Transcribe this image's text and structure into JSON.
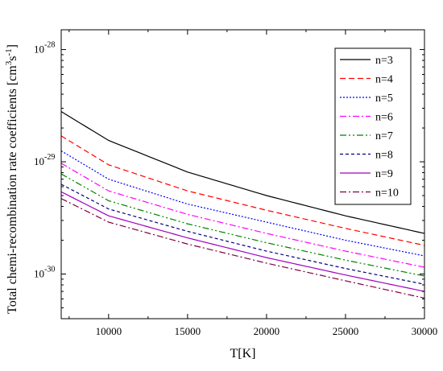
{
  "chart_data": {
    "type": "line",
    "title": "",
    "xlabel": "T[K]",
    "ylabel": "Total chemi-recombination rate coefficients [cm",
    "ylabel_unit_parts": [
      "3",
      "s",
      "-1",
      "]"
    ],
    "xscale": "linear",
    "yscale": "log",
    "xlim": [
      7000,
      30000
    ],
    "ylim": [
      4e-31,
      1.5e-28
    ],
    "grid": false,
    "legend_position": "top-right",
    "x_ticks": [
      {
        "value": 10000,
        "label": "10000"
      },
      {
        "value": 15000,
        "label": "15000"
      },
      {
        "value": 20000,
        "label": "20000"
      },
      {
        "value": 25000,
        "label": "25000"
      },
      {
        "value": 30000,
        "label": "30000"
      }
    ],
    "y_ticks": [
      {
        "value": 1e-28,
        "base": "10",
        "exp": "-28"
      },
      {
        "value": 1e-29,
        "base": "10",
        "exp": "-29"
      },
      {
        "value": 1e-30,
        "base": "10",
        "exp": "-30"
      }
    ],
    "x": [
      7000,
      10000,
      15000,
      20000,
      25000,
      30000
    ],
    "series": [
      {
        "name": "n=3",
        "color": "#000000",
        "dash": "solid",
        "values": [
          2.8e-29,
          1.55e-29,
          8.1e-30,
          5e-30,
          3.3e-30,
          2.3e-30
        ]
      },
      {
        "name": "n=4",
        "color": "#ff0000",
        "dash": "dashed",
        "values": [
          1.7e-29,
          9.4e-30,
          5.5e-30,
          3.7e-30,
          2.55e-30,
          1.8e-30
        ]
      },
      {
        "name": "n=5",
        "color": "#0000ff",
        "dash": "dotted",
        "values": [
          1.25e-29,
          7e-30,
          4.2e-30,
          2.9e-30,
          2e-30,
          1.45e-30
        ]
      },
      {
        "name": "n=6",
        "color": "#ff00ff",
        "dash": "dashdot",
        "values": [
          9.7e-30,
          5.5e-30,
          3.4e-30,
          2.3e-30,
          1.6e-30,
          1.15e-30
        ]
      },
      {
        "name": "n=7",
        "color": "#008000",
        "dash": "dashdotdot",
        "values": [
          7.8e-30,
          4.5e-30,
          2.8e-30,
          1.9e-30,
          1.33e-30,
          9.6e-31
        ]
      },
      {
        "name": "n=8",
        "color": "#000080",
        "dash": "shortdash",
        "values": [
          6.3e-30,
          3.8e-30,
          2.4e-30,
          1.6e-30,
          1.12e-30,
          8.1e-31
        ]
      },
      {
        "name": "n=9",
        "color": "#a000c0",
        "dash": "solid",
        "values": [
          5.4e-30,
          3.3e-30,
          2.1e-30,
          1.4e-30,
          9.8e-31,
          7e-31
        ]
      },
      {
        "name": "n=10",
        "color": "#800040",
        "dash": "dashdot",
        "values": [
          4.7e-30,
          2.9e-30,
          1.85e-30,
          1.25e-30,
          8.7e-31,
          6.1e-31
        ]
      }
    ]
  }
}
